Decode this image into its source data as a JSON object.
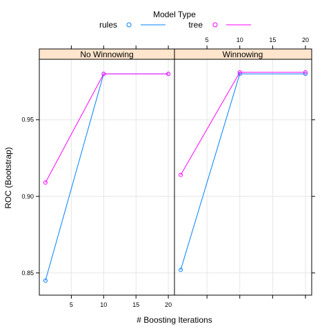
{
  "legend": {
    "title": "Model Type",
    "items": [
      {
        "label": "rules",
        "color": "#0080ff"
      },
      {
        "label": "tree",
        "color": "#ff00ff"
      }
    ]
  },
  "axes": {
    "xlabel": "# Boosting Iterations",
    "ylabel": "ROC (Bootstrap)"
  },
  "chart_data": {
    "type": "line",
    "title": "",
    "xlabel": "# Boosting Iterations",
    "ylabel": "ROC (Bootstrap)",
    "xlim": [
      0.05,
      20.95
    ],
    "ylim": [
      0.8355,
      0.9895
    ],
    "x_ticks": [
      5,
      10,
      15,
      20
    ],
    "y_ticks": [
      0.85,
      0.9,
      0.95
    ],
    "y_tick_labels": [
      "0.85",
      "0.90",
      "0.95"
    ],
    "grid": true,
    "legend_position": "top",
    "panels": [
      {
        "strip": "No Winnowing",
        "series": [
          {
            "name": "rules",
            "color": "#0080ff",
            "x": [
              1,
              10,
              20
            ],
            "y": [
              0.845,
              0.98,
              0.98
            ]
          },
          {
            "name": "tree",
            "color": "#ff00ff",
            "x": [
              1,
              10,
              20
            ],
            "y": [
              0.909,
              0.98,
              0.98
            ]
          }
        ]
      },
      {
        "strip": "Winnowing",
        "series": [
          {
            "name": "rules",
            "color": "#0080ff",
            "x": [
              1,
              10,
              20
            ],
            "y": [
              0.852,
              0.98,
              0.98
            ]
          },
          {
            "name": "tree",
            "color": "#ff00ff",
            "x": [
              1,
              10,
              20
            ],
            "y": [
              0.914,
              0.981,
              0.981
            ]
          }
        ]
      }
    ]
  }
}
